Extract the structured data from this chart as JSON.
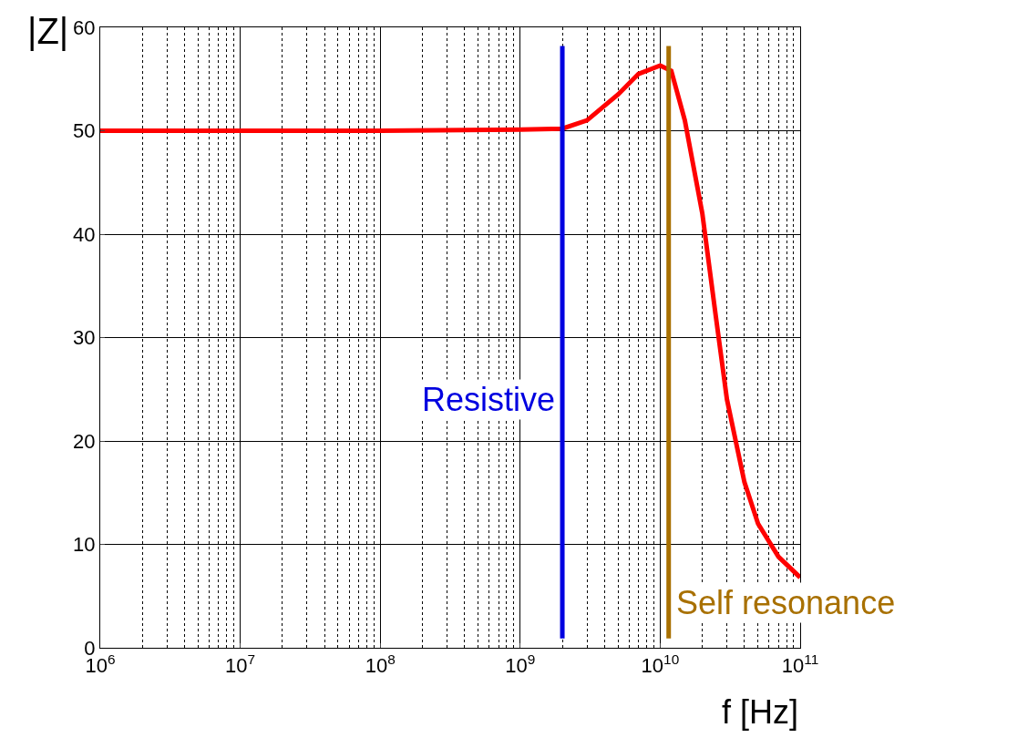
{
  "chart_data": {
    "type": "line",
    "xlabel": "f [Hz]",
    "ylabel": "|Z|",
    "log": "x",
    "x": [
      1000000.0,
      10000000.0,
      100000000.0,
      1000000000.0,
      2000000000.0,
      3000000000.0,
      5000000000.0,
      7000000000.0,
      10000000000.0,
      12000000000.0,
      15000000000.0,
      20000000000.0,
      25000000000.0,
      30000000000.0,
      40000000000.0,
      50000000000.0,
      70000000000.0,
      100000000000.0
    ],
    "series": [
      {
        "color": "#ff0000",
        "values": [
          50,
          50,
          50,
          50.1,
          50.2,
          51,
          53.5,
          55.5,
          56.3,
          55.8,
          51,
          42,
          32,
          24,
          16,
          12,
          8.8,
          6.8
        ]
      }
    ],
    "xlim": [
      1000000.0,
      100000000000.0
    ],
    "xticks": [
      {
        "value": 1000000.0,
        "label": "10$^{6}$"
      },
      {
        "value": 10000000.0,
        "label": "10$^{7}$"
      },
      {
        "value": 100000000.0,
        "label": "10$^{8}$"
      },
      {
        "value": 1000000000.0,
        "label": "10$^{9}$"
      },
      {
        "value": 10000000000.0,
        "label": "10$^{10}$"
      },
      {
        "value": 100000000000.0,
        "label": "10$^{11}$"
      }
    ],
    "ylim": [
      0,
      60
    ],
    "yticks": [
      0,
      10,
      20,
      30,
      40,
      50,
      60
    ],
    "grid": true,
    "marker": "none",
    "line_style": "solid",
    "ref_lines": [
      {
        "axis": "x",
        "value": 2000000000.0,
        "label": "Resistive",
        "color": "#0000e0"
      },
      {
        "axis": "x",
        "value": 11500000000.0,
        "label": "Self resonance",
        "color": "#a87000"
      }
    ]
  }
}
